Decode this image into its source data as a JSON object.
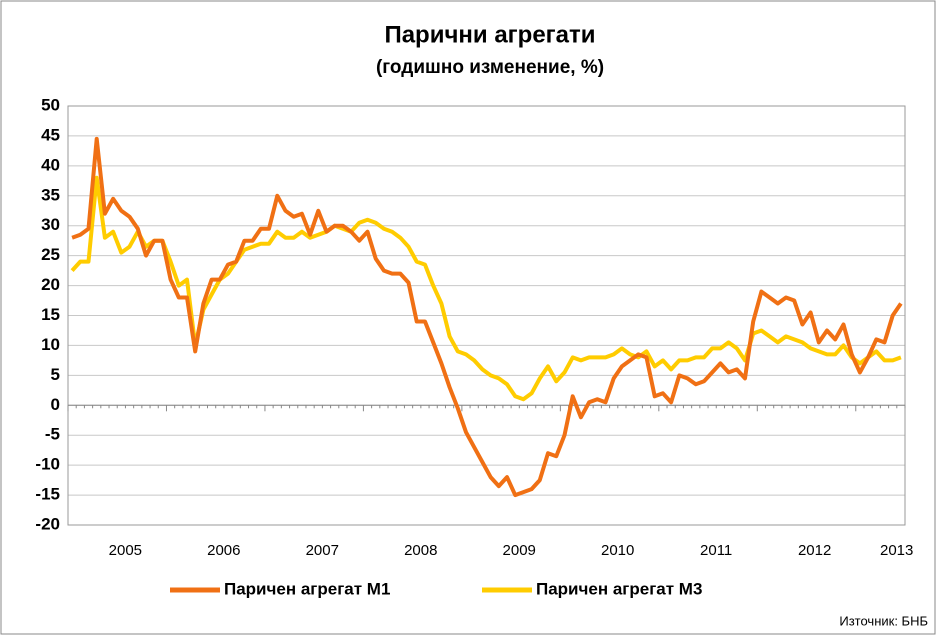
{
  "chart_data": {
    "type": "line",
    "title": "Парични агрегати",
    "subtitle": "(годишно изменение, %)",
    "source": "Източник: БНБ",
    "categories": [
      null,
      null,
      null,
      null,
      null,
      null,
      "2005",
      null,
      null,
      null,
      null,
      null,
      null,
      null,
      null,
      null,
      null,
      null,
      "2006",
      null,
      null,
      null,
      null,
      null,
      null,
      null,
      null,
      null,
      null,
      null,
      "2007",
      null,
      null,
      null,
      null,
      null,
      null,
      null,
      null,
      null,
      null,
      null,
      "2008",
      null,
      null,
      null,
      null,
      null,
      null,
      null,
      null,
      null,
      null,
      null,
      "2009",
      null,
      null,
      null,
      null,
      null,
      null,
      null,
      null,
      null,
      null,
      null,
      "2010",
      null,
      null,
      null,
      null,
      null,
      null,
      null,
      null,
      null,
      null,
      null,
      "2011",
      null,
      null,
      null,
      null,
      null,
      null,
      null,
      null,
      null,
      null,
      null,
      "2012",
      null,
      null,
      null,
      null,
      null,
      null,
      null,
      null,
      null,
      "2013",
      null
    ],
    "series": [
      {
        "name": "Паричен агрегат М1",
        "color": "#f07014",
        "values": [
          28,
          28.5,
          29.5,
          44.5,
          32,
          34.5,
          32.5,
          31.5,
          29.5,
          25,
          27.5,
          27.5,
          21,
          18,
          18,
          9,
          17,
          21,
          21,
          23.5,
          24,
          27.5,
          27.5,
          29.5,
          29.5,
          35,
          32.5,
          31.5,
          32,
          28.5,
          32.5,
          29,
          30,
          30,
          29,
          27.5,
          29,
          24.5,
          22.5,
          22,
          22,
          20.5,
          14,
          14,
          10.5,
          7,
          3,
          -0.5,
          -4.5,
          -7,
          -9.5,
          -12,
          -13.5,
          -12,
          -15,
          -14.5,
          -14,
          -12.5,
          -8,
          -8.5,
          -5,
          1.5,
          -2,
          0.5,
          1,
          0.5,
          4.5,
          6.5,
          7.5,
          8.5,
          8,
          1.5,
          2,
          0.5,
          5,
          4.5,
          3.5,
          4,
          5.5,
          7,
          5.5,
          6,
          4.5,
          14,
          19,
          18,
          17,
          18,
          17.5,
          13.5,
          15.5,
          10.5,
          12.5,
          11,
          13.5,
          8.5,
          5.5,
          8,
          11,
          10.5,
          15,
          17
        ]
      },
      {
        "name": "Паричен агрегат М3",
        "color": "#ffcc00",
        "values": [
          22.5,
          24,
          24,
          38,
          28,
          29,
          25.5,
          26.5,
          29,
          26.5,
          27.5,
          27.5,
          24,
          20,
          21,
          10,
          16,
          18.5,
          21,
          22,
          24,
          26,
          26.5,
          27,
          27,
          29,
          28,
          28,
          29,
          28,
          28.5,
          29,
          30,
          29.5,
          29,
          30.5,
          31,
          30.5,
          29.5,
          29,
          28,
          26.5,
          24,
          23.5,
          20,
          17,
          11.5,
          9,
          8.5,
          7.5,
          6,
          5,
          4.5,
          3.5,
          1.5,
          1,
          2,
          4.5,
          6.5,
          4,
          5.5,
          8,
          7.5,
          8,
          8,
          8,
          8.5,
          9.5,
          8.5,
          8,
          9,
          6.5,
          7.5,
          6,
          7.5,
          7.5,
          8,
          8,
          9.5,
          9.5,
          10.5,
          9.5,
          7.5,
          12,
          12.5,
          11.5,
          10.5,
          11.5,
          11,
          10.5,
          9.5,
          9,
          8.5,
          8.5,
          10,
          8,
          7,
          8,
          9,
          7.5,
          7.5,
          8
        ]
      }
    ],
    "ylim": [
      -20,
      50
    ],
    "yticks": [
      -20,
      -15,
      -10,
      -5,
      0,
      5,
      10,
      15,
      20,
      25,
      30,
      35,
      40,
      45,
      50
    ],
    "grid": true
  }
}
